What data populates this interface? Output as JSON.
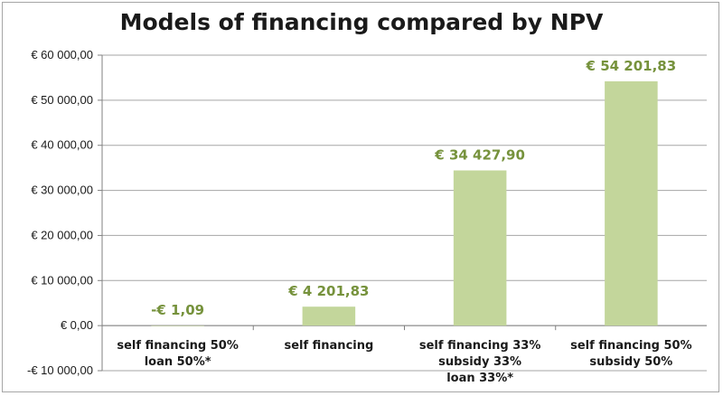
{
  "chart_data": {
    "type": "bar",
    "title": "Models of financing compared by NPV",
    "xlabel": "",
    "ylabel": "",
    "categories": [
      [
        "self financing 50%",
        "loan 50%*"
      ],
      [
        "self financing"
      ],
      [
        "self financing 33%",
        "subsidy 33%",
        "loan 33%*"
      ],
      [
        "self financing 50%",
        "subsidy 50%"
      ]
    ],
    "values": [
      -1.09,
      4201.83,
      34427.9,
      54201.83
    ],
    "data_labels": [
      "-€ 1,09",
      "€ 4 201,83",
      "€ 34 427,90",
      "€ 54 201,83"
    ],
    "ylim": [
      -10000,
      60000
    ],
    "yticks": [
      60000,
      50000,
      40000,
      30000,
      20000,
      10000,
      0,
      -10000
    ],
    "ytick_labels": [
      "€ 60 000,00",
      "€ 50 000,00",
      "€ 40 000,00",
      "€ 30 000,00",
      "€ 20 000,00",
      "€ 10 000,00",
      "€ 0,00",
      "-€ 10 000,00"
    ],
    "grid": true,
    "bar_color": "#c3d69b",
    "label_color": "#76923c"
  }
}
